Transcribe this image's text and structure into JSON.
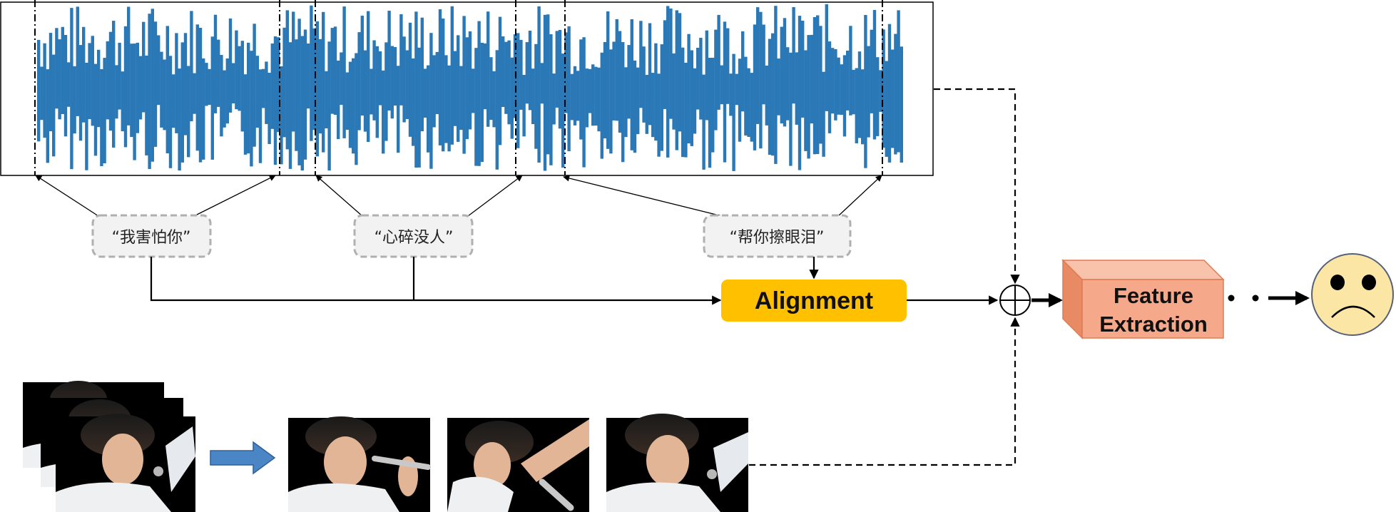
{
  "lyrics": [
    {
      "text": "“我害怕你”"
    },
    {
      "text": "“心碎没人”"
    },
    {
      "text": "“帮你擦眼泪”"
    }
  ],
  "alignment": {
    "label": "Alignment"
  },
  "feature_extraction": {
    "line1": "Feature",
    "line2": "Extraction"
  },
  "colors": {
    "waveform": "#2a78b6",
    "alignment_fill": "#ffc000",
    "feature_front": "#f5a98a",
    "feature_side": "#e88a63",
    "feature_top": "#f8c2ab",
    "face_fill": "#fbe6a6",
    "arrow_fill": "#4a86c6",
    "tag_fill": "#f2f2f2",
    "tag_border": "#b0b0b0"
  },
  "icons": {
    "combine": "circle-plus-icon",
    "emotion": "sad-face-icon",
    "transform": "right-arrow-icon"
  }
}
